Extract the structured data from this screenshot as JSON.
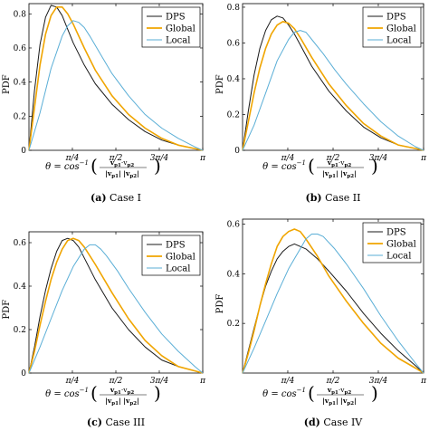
{
  "legend_labels": [
    "DPS",
    "Global",
    "Local"
  ],
  "colors": {
    "DPS": "#1a1a1a",
    "Global": "#f0a500",
    "Local": "#5aaed6"
  },
  "chart_data": [
    {
      "type": "line",
      "caption_letter": "(a)",
      "caption_text": "Case I",
      "ylabel": "PDF",
      "xlabel": "θ = cos⁻¹ ( v_{p1}·v_{p2} / |v_{p1}| |v_{p2}| )",
      "xlim": [
        0,
        3.1416
      ],
      "ylim": [
        0,
        0.86
      ],
      "x_ticks": [
        0.785,
        1.571,
        2.356,
        3.142
      ],
      "x_tick_labels": [
        "π/4",
        "π/2",
        "3π/4",
        "π"
      ],
      "y_ticks": [
        0,
        0.2,
        0.4,
        0.6,
        0.8
      ],
      "y_tick_labels": [
        "0",
        "0.2",
        "0.4",
        "0.6",
        "0.8"
      ],
      "legend_position": "top-right",
      "series": [
        {
          "name": "DPS",
          "x": [
            0,
            0.1,
            0.2,
            0.3,
            0.4,
            0.5,
            0.6,
            0.7,
            0.8,
            1.0,
            1.2,
            1.5,
            1.8,
            2.1,
            2.4,
            2.7,
            3.0,
            3.14
          ],
          "y": [
            0,
            0.35,
            0.62,
            0.78,
            0.85,
            0.84,
            0.79,
            0.71,
            0.63,
            0.5,
            0.39,
            0.27,
            0.18,
            0.11,
            0.06,
            0.03,
            0.01,
            0
          ]
        },
        {
          "name": "Global",
          "x": [
            0,
            0.1,
            0.2,
            0.3,
            0.4,
            0.5,
            0.6,
            0.7,
            0.8,
            1.0,
            1.2,
            1.5,
            1.8,
            2.1,
            2.4,
            2.7,
            3.0,
            3.14
          ],
          "y": [
            0,
            0.25,
            0.5,
            0.68,
            0.79,
            0.84,
            0.84,
            0.8,
            0.74,
            0.6,
            0.47,
            0.32,
            0.21,
            0.13,
            0.07,
            0.03,
            0.01,
            0
          ]
        },
        {
          "name": "Local",
          "x": [
            0,
            0.2,
            0.4,
            0.6,
            0.7,
            0.8,
            0.9,
            1.0,
            1.1,
            1.3,
            1.5,
            1.8,
            2.1,
            2.4,
            2.7,
            3.0,
            3.14
          ],
          "y": [
            0,
            0.22,
            0.48,
            0.67,
            0.73,
            0.76,
            0.75,
            0.72,
            0.67,
            0.56,
            0.45,
            0.32,
            0.21,
            0.13,
            0.07,
            0.02,
            0
          ]
        }
      ]
    },
    {
      "type": "line",
      "caption_letter": "(b)",
      "caption_text": "Case II",
      "ylabel": "",
      "xlabel": "θ = cos⁻¹ ( v_{p1}·v_{p2} / |v_{p1}| |v_{p2}| )",
      "xlim": [
        0,
        3.1416
      ],
      "ylim": [
        0,
        0.82
      ],
      "x_ticks": [
        0.785,
        1.571,
        2.356,
        3.142
      ],
      "x_tick_labels": [
        "π/4",
        "π/2",
        "3π/4",
        "π"
      ],
      "y_ticks": [
        0,
        0.2,
        0.4,
        0.6,
        0.8
      ],
      "y_tick_labels": [
        "0",
        "0.2",
        "0.4",
        "0.6",
        "0.8"
      ],
      "legend_position": "top-right",
      "series": [
        {
          "name": "DPS",
          "x": [
            0,
            0.1,
            0.2,
            0.3,
            0.4,
            0.5,
            0.6,
            0.7,
            0.8,
            0.9,
            1.0,
            1.2,
            1.5,
            1.8,
            2.1,
            2.4,
            2.7,
            3.0,
            3.14
          ],
          "y": [
            0,
            0.22,
            0.42,
            0.57,
            0.67,
            0.73,
            0.75,
            0.74,
            0.7,
            0.65,
            0.59,
            0.47,
            0.33,
            0.22,
            0.13,
            0.07,
            0.03,
            0.01,
            0
          ]
        },
        {
          "name": "Global",
          "x": [
            0,
            0.1,
            0.2,
            0.3,
            0.4,
            0.5,
            0.6,
            0.7,
            0.8,
            0.9,
            1.0,
            1.2,
            1.5,
            1.8,
            2.1,
            2.4,
            2.7,
            3.0,
            3.14
          ],
          "y": [
            0,
            0.16,
            0.32,
            0.46,
            0.57,
            0.65,
            0.7,
            0.72,
            0.71,
            0.68,
            0.63,
            0.52,
            0.37,
            0.25,
            0.15,
            0.08,
            0.03,
            0.01,
            0
          ]
        },
        {
          "name": "Local",
          "x": [
            0,
            0.2,
            0.4,
            0.6,
            0.8,
            0.9,
            1.0,
            1.1,
            1.2,
            1.4,
            1.6,
            1.8,
            2.1,
            2.4,
            2.7,
            3.0,
            3.14
          ],
          "y": [
            0,
            0.14,
            0.32,
            0.5,
            0.62,
            0.66,
            0.67,
            0.66,
            0.62,
            0.54,
            0.45,
            0.37,
            0.26,
            0.16,
            0.08,
            0.02,
            0
          ]
        }
      ]
    },
    {
      "type": "line",
      "caption_letter": "(c)",
      "caption_text": "Case III",
      "ylabel": "PDF",
      "xlabel": "θ = cos⁻¹ ( v_{p1}·v_{p2} / |v_{p1}| |v_{p2}| )",
      "xlim": [
        0,
        3.1416
      ],
      "ylim": [
        0,
        0.65
      ],
      "x_ticks": [
        0.785,
        1.571,
        2.356,
        3.142
      ],
      "x_tick_labels": [
        "π/4",
        "π/2",
        "3π/4",
        "π"
      ],
      "y_ticks": [
        0,
        0.2,
        0.4,
        0.6
      ],
      "y_tick_labels": [
        "0",
        "0.2",
        "0.4",
        "0.6"
      ],
      "legend_position": "top-right",
      "series": [
        {
          "name": "DPS",
          "x": [
            0,
            0.1,
            0.2,
            0.3,
            0.4,
            0.5,
            0.6,
            0.7,
            0.8,
            0.9,
            1.0,
            1.2,
            1.5,
            1.8,
            2.1,
            2.4,
            2.7,
            3.0,
            3.14
          ],
          "y": [
            0,
            0.12,
            0.26,
            0.38,
            0.48,
            0.56,
            0.61,
            0.62,
            0.61,
            0.58,
            0.53,
            0.43,
            0.3,
            0.2,
            0.12,
            0.06,
            0.03,
            0.01,
            0
          ]
        },
        {
          "name": "Global",
          "x": [
            0,
            0.1,
            0.2,
            0.3,
            0.4,
            0.5,
            0.6,
            0.7,
            0.8,
            0.9,
            1.0,
            1.2,
            1.5,
            1.8,
            2.1,
            2.4,
            2.7,
            3.0,
            3.14
          ],
          "y": [
            0,
            0.1,
            0.22,
            0.33,
            0.43,
            0.51,
            0.57,
            0.61,
            0.62,
            0.61,
            0.58,
            0.5,
            0.37,
            0.25,
            0.15,
            0.08,
            0.03,
            0.01,
            0
          ]
        },
        {
          "name": "Local",
          "x": [
            0,
            0.2,
            0.4,
            0.6,
            0.8,
            1.0,
            1.1,
            1.2,
            1.3,
            1.4,
            1.6,
            1.8,
            2.1,
            2.4,
            2.7,
            3.0,
            3.14
          ],
          "y": [
            0,
            0.12,
            0.25,
            0.38,
            0.49,
            0.57,
            0.59,
            0.59,
            0.57,
            0.54,
            0.47,
            0.39,
            0.28,
            0.18,
            0.1,
            0.03,
            0
          ]
        }
      ]
    },
    {
      "type": "line",
      "caption_letter": "(d)",
      "caption_text": "Case IV",
      "ylabel": "",
      "xlabel": "θ = cos⁻¹ ( v_{p1}·v_{p2} / |v_{p1}| |v_{p2}| )",
      "xlim": [
        0,
        3.1416
      ],
      "ylim": [
        0,
        0.62
      ],
      "x_ticks": [
        0.785,
        1.571,
        2.356,
        3.142
      ],
      "x_tick_labels": [
        "π/4",
        "π/2",
        "3π/4",
        "π"
      ],
      "y_ticks": [
        0.2,
        0.4,
        0.6
      ],
      "y_tick_labels": [
        "0.2",
        "0.4",
        "0.6"
      ],
      "legend_position": "top-right",
      "series": [
        {
          "name": "DPS",
          "x": [
            0,
            0.1,
            0.2,
            0.3,
            0.4,
            0.5,
            0.6,
            0.7,
            0.8,
            0.9,
            1.0,
            1.1,
            1.3,
            1.5,
            1.8,
            2.1,
            2.4,
            2.7,
            3.0,
            3.14
          ],
          "y": [
            0,
            0.09,
            0.18,
            0.27,
            0.35,
            0.41,
            0.46,
            0.49,
            0.51,
            0.52,
            0.51,
            0.5,
            0.46,
            0.41,
            0.33,
            0.24,
            0.16,
            0.09,
            0.03,
            0
          ]
        },
        {
          "name": "Global",
          "x": [
            0,
            0.1,
            0.2,
            0.3,
            0.4,
            0.5,
            0.6,
            0.7,
            0.8,
            0.9,
            1.0,
            1.1,
            1.3,
            1.5,
            1.8,
            2.1,
            2.4,
            2.7,
            3.0,
            3.14
          ],
          "y": [
            0,
            0.08,
            0.17,
            0.27,
            0.36,
            0.44,
            0.51,
            0.55,
            0.57,
            0.58,
            0.57,
            0.54,
            0.47,
            0.39,
            0.29,
            0.2,
            0.12,
            0.06,
            0.02,
            0
          ]
        },
        {
          "name": "Local",
          "x": [
            0,
            0.2,
            0.4,
            0.6,
            0.8,
            1.0,
            1.1,
            1.2,
            1.3,
            1.4,
            1.6,
            1.8,
            2.1,
            2.4,
            2.7,
            3.0,
            3.14
          ],
          "y": [
            0,
            0.1,
            0.21,
            0.32,
            0.42,
            0.5,
            0.54,
            0.56,
            0.56,
            0.55,
            0.5,
            0.44,
            0.34,
            0.23,
            0.13,
            0.04,
            0
          ]
        }
      ]
    }
  ]
}
